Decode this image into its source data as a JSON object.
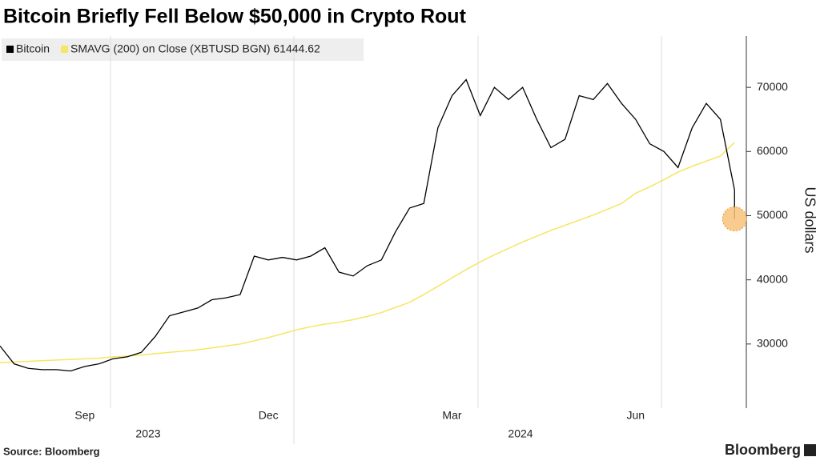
{
  "chart_data": {
    "type": "line",
    "title": "Bitcoin Briefly Fell Below $50,000 in Crypto Rout",
    "y_label": "US dollars",
    "source": "Source:  Bloomberg",
    "brand": "Bloomberg",
    "years": [
      "2023",
      "2024"
    ],
    "categories": [
      null,
      null,
      null,
      null,
      null,
      null,
      "Sep",
      null,
      null,
      null,
      null,
      null,
      null,
      null,
      null,
      null,
      null,
      null,
      null,
      "Dec",
      null,
      null,
      null,
      null,
      null,
      null,
      null,
      null,
      null,
      null,
      null,
      null,
      "Mar",
      null,
      null,
      null,
      null,
      null,
      null,
      null,
      null,
      null,
      null,
      null,
      null,
      "Jun",
      null,
      null,
      null,
      null,
      null,
      null,
      null
    ],
    "series": [
      {
        "name": "Bitcoin",
        "color": "#000000",
        "values": [
          29700,
          26900,
          26200,
          26000,
          26000,
          25800,
          26500,
          26900,
          27700,
          28000,
          28700,
          31200,
          34400,
          35000,
          35600,
          36900,
          37200,
          37700,
          43700,
          43100,
          43500,
          43100,
          43700,
          45000,
          41200,
          40600,
          42200,
          43100,
          47500,
          51200,
          51900,
          63700,
          68700,
          71200,
          65600,
          70000,
          68100,
          70000,
          65000,
          60600,
          61900,
          68700,
          68100,
          70600,
          67500,
          65000,
          61200,
          60000,
          57500,
          63700,
          67500,
          65000,
          54000
        ]
      },
      {
        "name": "SMAVG (200)  on Close (XBTUSD BGN) 61444.62",
        "color": "#f5e663",
        "values": [
          27100,
          27200,
          27300,
          27400,
          27500,
          27600,
          27700,
          27800,
          28000,
          28100,
          28300,
          28500,
          28700,
          28900,
          29100,
          29400,
          29700,
          30000,
          30500,
          31000,
          31600,
          32200,
          32700,
          33100,
          33400,
          33800,
          34300,
          34900,
          35700,
          36500,
          37700,
          39000,
          40300,
          41600,
          42800,
          43900,
          44900,
          45900,
          46800,
          47700,
          48500,
          49300,
          50100,
          51000,
          51900,
          53500,
          54500,
          55600,
          56800,
          57700,
          58500,
          59300,
          61400
        ]
      }
    ],
    "low_marker": 49500,
    "ylim": [
      20000,
      78000
    ],
    "yticks": [
      30000,
      40000,
      50000,
      60000,
      70000
    ]
  }
}
